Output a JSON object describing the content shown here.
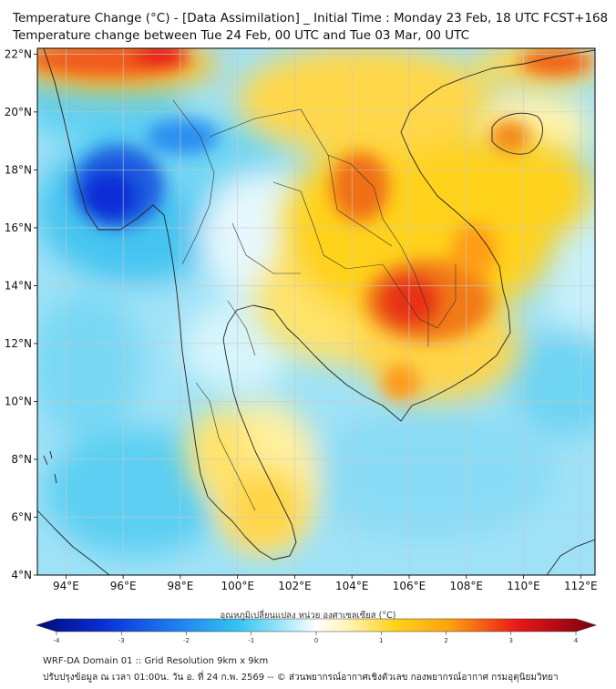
{
  "header": {
    "title_line1": "Temperature Change (°C) - [Data Assimilation] _ Initial Time : Monday 23 Feb, 18 UTC FCST+168",
    "title_line2": "Temperature change between Tue 24 Feb, 00 UTC and Tue 03 Mar, 00 UTC"
  },
  "map": {
    "lon_ticks": [
      "94°E",
      "96°E",
      "98°E",
      "100°E",
      "102°E",
      "104°E",
      "106°E",
      "108°E",
      "110°E",
      "112°E"
    ],
    "lat_ticks": [
      "22°N",
      "20°N",
      "18°N",
      "16°N",
      "14°N",
      "12°N",
      "10°N",
      "8°N",
      "6°N",
      "4°N"
    ],
    "lon_range": [
      93,
      112.5
    ],
    "lat_range": [
      4,
      22.2
    ],
    "colors": {
      "land_line": "#222222",
      "grid_line": "#c8c8c8",
      "cold_deep": "#0a2fd6",
      "cold": "#33c4f0",
      "neutral": "#ffffff",
      "warm": "#ffd21a",
      "hot": "#e81818"
    }
  },
  "colorbar": {
    "label": "อุณหภูมิเปลี่ยนแปลง หน่วย องศาเซลเซียส (°C)",
    "ticks": [
      "-4",
      "-3",
      "-2",
      "-1",
      "0",
      "1",
      "2",
      "3",
      "4"
    ],
    "range": [
      -4,
      4
    ]
  },
  "footer": {
    "line1": "WRF-DA Domain 01 :: Grid Resolution 9km x 9km",
    "line2": "ปรับปรุงข้อมูล ณ เวลา 01:00น. วัน อ. ที่ 24 ก.พ. 2569 -- © ส่วนพยากรณ์อากาศเชิงตัวเลข กองพยากรณ์อากาศ กรมอุตุนิยมวิทยา"
  }
}
